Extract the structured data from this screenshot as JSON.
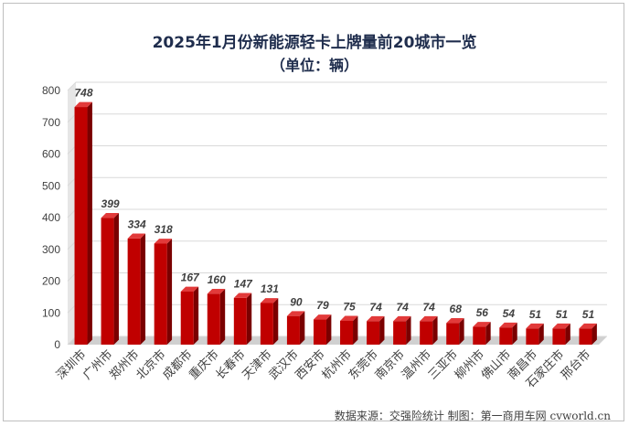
{
  "title_line1": "2025年1月份新能源轻卡上牌量前20城市一览",
  "title_line2": "（单位：辆）",
  "source_note": "数据来源：交强险统计  制图：第一商用车网 cvworld.cn",
  "colors": {
    "bar_front": "#c00000",
    "bar_top": "#e23a3a",
    "bar_side": "#7a0000",
    "grid": "#d9d9d9",
    "label": "#404040"
  },
  "chart_data": {
    "type": "bar",
    "categories": [
      "深圳市",
      "广州市",
      "郑州市",
      "北京市",
      "成都市",
      "重庆市",
      "长春市",
      "天津市",
      "武汉市",
      "西安市",
      "杭州市",
      "东莞市",
      "南京市",
      "温州市",
      "三亚市",
      "柳州市",
      "佛山市",
      "南昌市",
      "石家庄市",
      "邢台市"
    ],
    "values": [
      748,
      399,
      334,
      318,
      167,
      160,
      147,
      131,
      90,
      79,
      75,
      74,
      74,
      74,
      68,
      56,
      54,
      51,
      51,
      51
    ],
    "yticks": [
      0,
      100,
      200,
      300,
      400,
      500,
      600,
      700,
      800
    ],
    "ylim": [
      0,
      800
    ],
    "grid": true,
    "legend": "none",
    "style": "3d-column"
  }
}
